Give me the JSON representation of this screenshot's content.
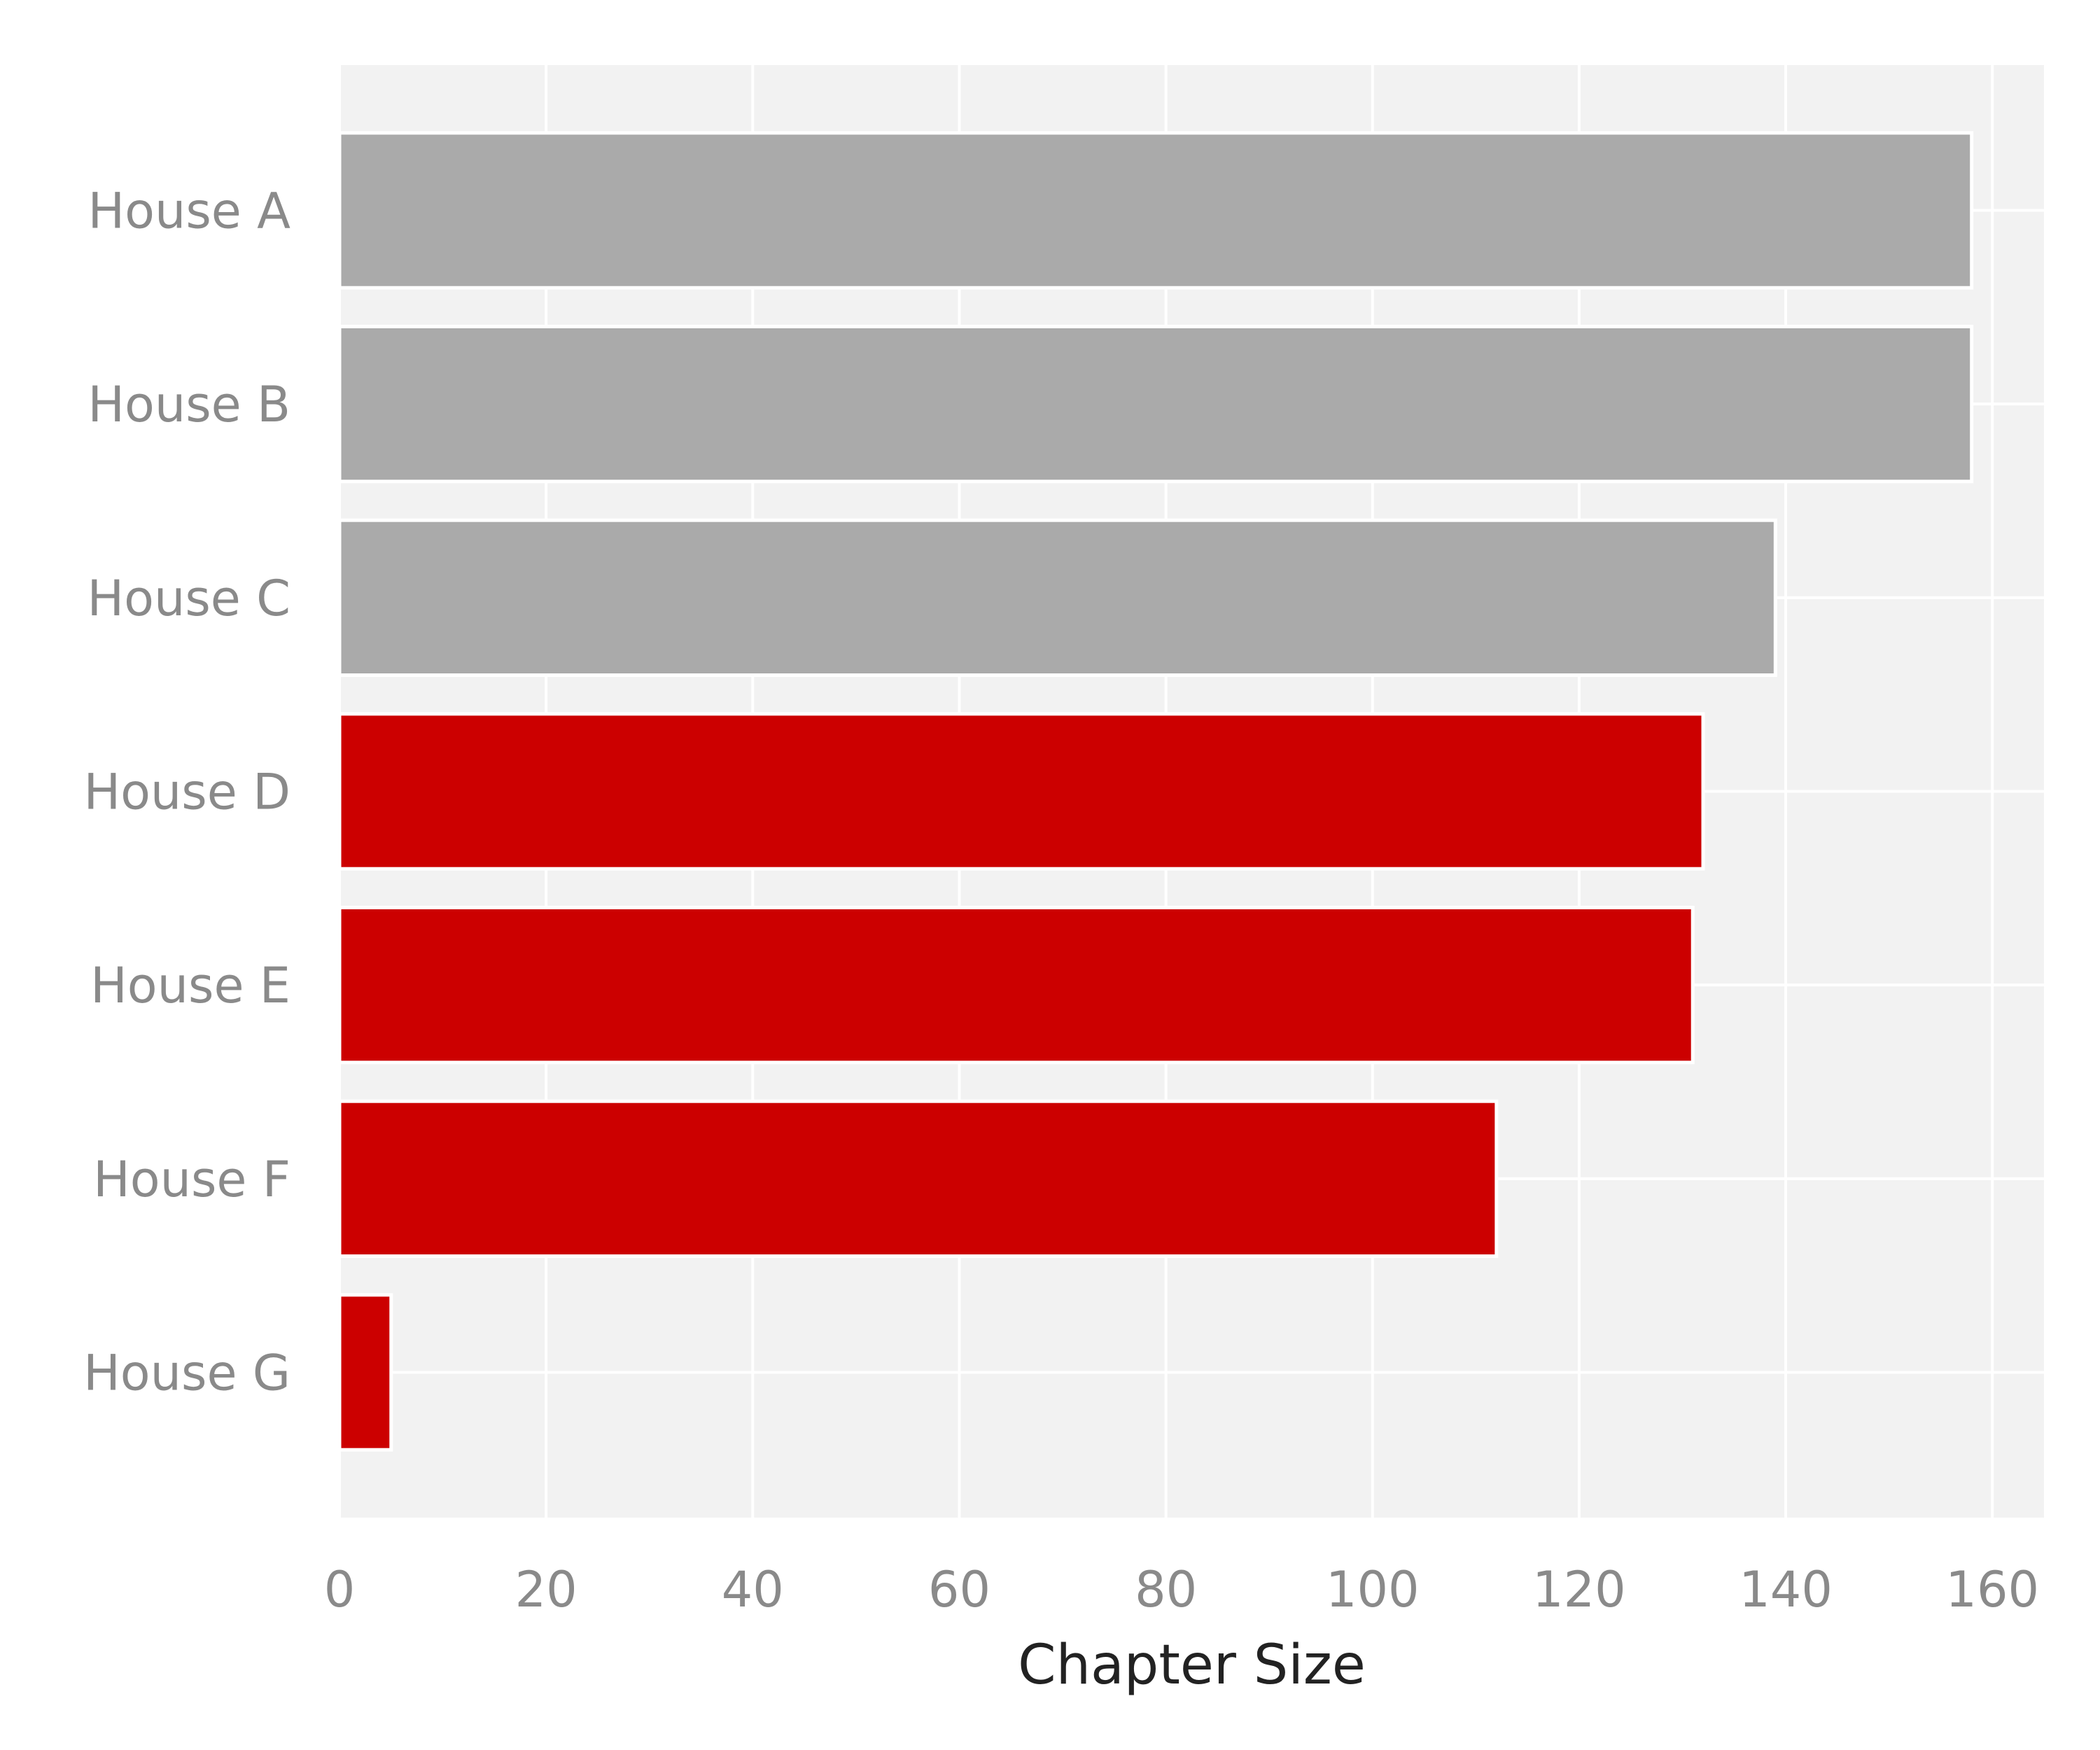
{
  "chart_data": {
    "type": "bar",
    "orientation": "horizontal",
    "categories": [
      "House A",
      "House B",
      "House C",
      "House D",
      "House E",
      "House F",
      "House G"
    ],
    "values": [
      158,
      158,
      139,
      132,
      131,
      112,
      5
    ],
    "bar_colors": [
      "#aaaaaa",
      "#aaaaaa",
      "#aaaaaa",
      "#cc0000",
      "#cc0000",
      "#cc0000",
      "#cc0000"
    ],
    "title": "",
    "xlabel": "Chapter Size",
    "ylabel": "",
    "xlim": [
      0,
      165
    ],
    "xticks": [
      0,
      20,
      40,
      60,
      80,
      100,
      120,
      140,
      160
    ],
    "grid": true,
    "background_color": "#f2f2f2",
    "gridline_color": "#ffffff"
  }
}
